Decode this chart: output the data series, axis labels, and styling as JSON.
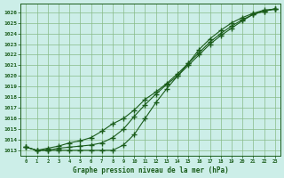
{
  "title": "Graphe pression niveau de la mer (hPa)",
  "bg_color": "#cceee8",
  "line_color": "#1a5c1a",
  "grid_color": "#88bb88",
  "xlim": [
    -0.5,
    23.5
  ],
  "ylim": [
    1012.5,
    1026.8
  ],
  "yticks": [
    1013,
    1014,
    1015,
    1016,
    1017,
    1018,
    1019,
    1020,
    1021,
    1022,
    1023,
    1024,
    1025,
    1026
  ],
  "xticks": [
    0,
    1,
    2,
    3,
    4,
    5,
    6,
    7,
    8,
    9,
    10,
    11,
    12,
    13,
    14,
    15,
    16,
    17,
    18,
    19,
    20,
    21,
    22,
    23
  ],
  "series1": [
    1013.3,
    1013.0,
    1013.0,
    1013.2,
    1013.3,
    1013.4,
    1013.5,
    1013.7,
    1014.2,
    1015.0,
    1016.2,
    1017.3,
    1018.3,
    1019.2,
    1020.0,
    1021.0,
    1022.0,
    1023.0,
    1023.8,
    1024.5,
    1025.2,
    1025.8,
    1026.1,
    1026.3
  ],
  "series2": [
    1013.3,
    1013.0,
    1013.2,
    1013.4,
    1013.7,
    1013.9,
    1014.2,
    1014.8,
    1015.5,
    1016.0,
    1016.8,
    1017.8,
    1018.5,
    1019.3,
    1020.2,
    1021.2,
    1022.2,
    1023.2,
    1024.0,
    1024.7,
    1025.3,
    1025.8,
    1026.1,
    1026.3
  ],
  "series3": [
    1013.3,
    1013.0,
    1013.0,
    1013.0,
    1013.0,
    1013.0,
    1013.0,
    1013.0,
    1013.0,
    1013.5,
    1014.5,
    1016.0,
    1017.5,
    1018.8,
    1020.0,
    1021.2,
    1022.5,
    1023.5,
    1024.3,
    1025.0,
    1025.5,
    1025.9,
    1026.2,
    1026.3
  ]
}
